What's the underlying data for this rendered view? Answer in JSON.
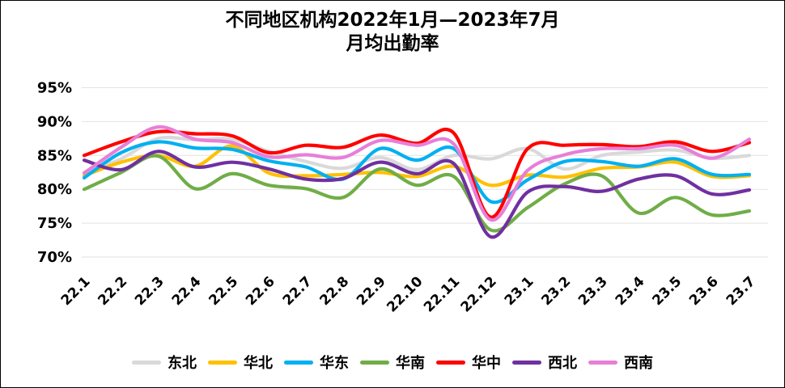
{
  "title": {
    "line1": "不同地区机构2022年1月—2023年7月",
    "line2": "月均出勤率"
  },
  "chart_data": {
    "type": "line",
    "smooth": true,
    "grid": true,
    "legend_position": "bottom",
    "ylim": [
      70,
      95
    ],
    "ytick_step": 5,
    "ytick_labels": [
      "95%",
      "90%",
      "85%",
      "80%",
      "75%",
      "70%"
    ],
    "categories": [
      "22.1",
      "22.2",
      "22.3",
      "22.4",
      "22.5",
      "22.6",
      "22.7",
      "22.8",
      "22.9",
      "22.10",
      "22.11",
      "22.12",
      "23.1",
      "23.2",
      "23.3",
      "23.4",
      "23.5",
      "23.6",
      "23.7"
    ],
    "series": [
      {
        "key": "northeast",
        "name": "东北",
        "color": "#d9d9d9",
        "values": [
          82.5,
          84.5,
          87.5,
          87.3,
          87.4,
          85.6,
          84.1,
          83.1,
          84.7,
          82.9,
          85.0,
          84.5,
          86.0,
          83.0,
          85.0,
          85.5,
          85.8,
          84.6,
          85.0
        ]
      },
      {
        "key": "north",
        "name": "华北",
        "color": "#ffc000",
        "values": [
          82.0,
          84.0,
          85.0,
          83.4,
          86.4,
          82.4,
          82.0,
          82.2,
          82.5,
          81.9,
          83.4,
          80.6,
          82.1,
          81.8,
          83.1,
          83.3,
          84.0,
          81.9,
          82.0
        ]
      },
      {
        "key": "east",
        "name": "华东",
        "color": "#00b0f0",
        "values": [
          81.7,
          85.4,
          87.0,
          86.1,
          85.9,
          84.2,
          83.3,
          81.5,
          86.0,
          84.3,
          86.0,
          78.2,
          81.4,
          84.1,
          84.1,
          83.4,
          84.5,
          82.2,
          82.2
        ]
      },
      {
        "key": "south",
        "name": "华南",
        "color": "#70ad47",
        "values": [
          80.0,
          82.5,
          84.9,
          80.1,
          82.3,
          80.6,
          80.1,
          78.8,
          83.0,
          80.6,
          81.9,
          74.0,
          77.3,
          80.8,
          82.0,
          76.5,
          78.8,
          76.2,
          76.8
        ]
      },
      {
        "key": "central",
        "name": "华中",
        "color": "#ff0000",
        "values": [
          85.0,
          87.0,
          88.5,
          88.2,
          87.9,
          85.4,
          86.5,
          86.2,
          88.0,
          86.8,
          88.3,
          75.9,
          86.0,
          86.5,
          86.6,
          86.3,
          87.0,
          85.6,
          86.9
        ]
      },
      {
        "key": "northwest",
        "name": "西北",
        "color": "#7030a0",
        "values": [
          84.3,
          82.9,
          85.6,
          83.3,
          84.0,
          83.0,
          81.5,
          81.6,
          84.0,
          82.3,
          83.8,
          73.0,
          79.6,
          80.4,
          79.7,
          81.5,
          82.0,
          79.3,
          79.9
        ]
      },
      {
        "key": "southwest",
        "name": "西南",
        "color": "#e77fd9",
        "values": [
          82.4,
          86.2,
          89.2,
          87.4,
          86.9,
          84.8,
          85.1,
          84.7,
          87.2,
          86.5,
          86.7,
          75.5,
          82.8,
          85.1,
          86.0,
          86.0,
          86.5,
          84.6,
          87.4
        ]
      }
    ]
  }
}
